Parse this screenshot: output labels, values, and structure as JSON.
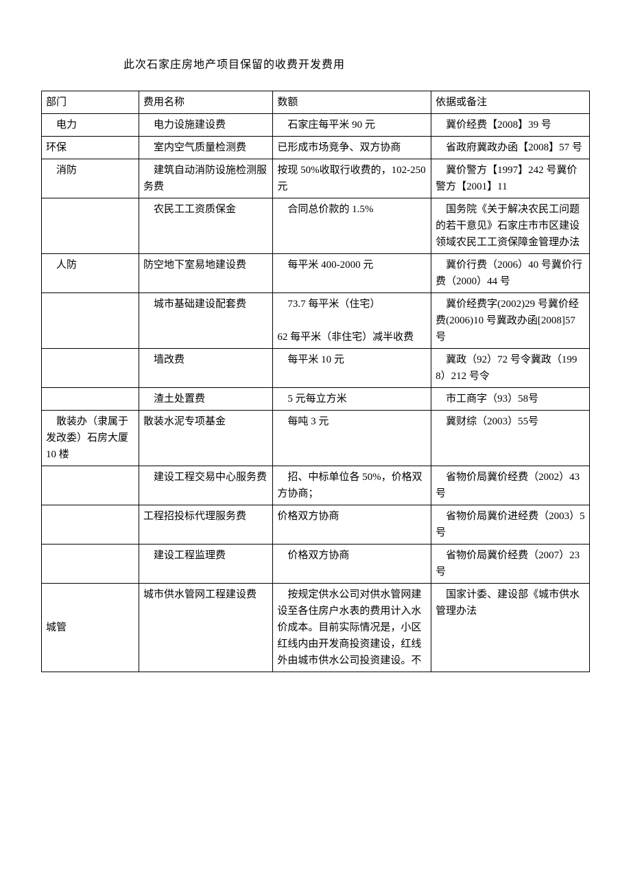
{
  "title": "此次石家庄房地产项目保留的收费开发费用",
  "headers": [
    "部门",
    "费用名称",
    "数额",
    "依据或备注"
  ],
  "rows": [
    {
      "dept": "电力",
      "fee": "电力设施建设费",
      "amount": "石家庄每平米 90 元",
      "basis": "冀价经费【2008】39 号",
      "dept_indent": true,
      "fee_indent": true,
      "amount_indent": true,
      "basis_indent": true
    },
    {
      "dept": "环保",
      "fee": "室内空气质量检测费",
      "amount": "已形成市场竞争、双方协商",
      "basis": "省政府冀政办函【2008】57 号",
      "fee_indent": true,
      "basis_indent": true
    },
    {
      "dept": "消防",
      "fee": "建筑自动消防设施检测服务费",
      "amount": "按现 50%收取行收费的，102-250 元",
      "basis": "冀价警方【1997】242 号冀价警方【2001】11",
      "dept_indent": true,
      "fee_indent": true,
      "basis_indent": true
    },
    {
      "dept": "",
      "fee": "农民工工资质保金",
      "amount": "合同总价款的 1.5%",
      "basis": "国务院《关于解决农民工问题的若干意见》石家庄市市区建设领域农民工工资保障金管理办法",
      "fee_indent": true,
      "amount_indent": true,
      "basis_indent": true
    },
    {
      "dept": "人防",
      "fee": "防空地下室易地建设费",
      "amount": "每平米 400-2000 元",
      "basis": "冀价行费（2006）40 号冀价行费（2000）44 号",
      "dept_indent": true,
      "amount_indent": true,
      "basis_indent": true
    },
    {
      "dept": "",
      "fee": "城市基础建设配套费",
      "amount": "73.7 每平米（住宅）\n\n62 每平米（非住宅）减半收费",
      "basis": "冀价经费字(2002)29 号冀价经费(2006)10 号冀政办函[2008]57 号",
      "fee_indent": true,
      "amount_indent": true,
      "basis_indent": true
    },
    {
      "dept": "",
      "fee": "墙改费",
      "amount": "每平米 10 元",
      "basis": "冀政（92）72 号令冀政（1998）212 号令",
      "fee_indent": true,
      "amount_indent": true,
      "basis_indent": true
    },
    {
      "dept": "",
      "fee": "渣土处置费",
      "amount": "5 元每立方米",
      "basis": "市工商字（93）58号",
      "fee_indent": true,
      "amount_indent": true,
      "basis_indent": true
    },
    {
      "dept": "散装办（隶属于发改委）石房大厦 10 楼",
      "fee": "散装水泥专项基金",
      "amount": "每吨 3 元",
      "basis": "冀财综（2003）55号",
      "dept_indent": true,
      "amount_indent": true,
      "basis_indent": true
    },
    {
      "dept": "",
      "fee": "建设工程交易中心服务费",
      "amount": "招、中标单位各 50%，价格双方协商；",
      "basis": "省物价局冀价经费（2002）43 号",
      "fee_indent": true,
      "amount_indent": true,
      "basis_indent": true
    },
    {
      "dept": "",
      "fee": "工程招投标代理服务费",
      "amount": "价格双方协商",
      "basis": "省物价局冀价进经费（2003）5 号",
      "basis_indent": true
    },
    {
      "dept": "",
      "fee": "建设工程监理费",
      "amount": "价格双方协商",
      "basis": "省物价局冀价经费（2007）23 号",
      "fee_indent": true,
      "amount_indent": true,
      "basis_indent": true
    },
    {
      "dept": "\n\n城管",
      "fee": "城市供水管网工程建设费",
      "amount": "按规定供水公司对供水管网建设至各住房户水表的费用计入水价成本。目前实际情况是，小区红线内由开发商投资建设，红线外由城市供水公司投资建设。不",
      "basis": "国家计委、建设部《城市供水管理办法",
      "dept_indent": true,
      "amount_indent": true,
      "basis_indent": true
    }
  ],
  "table": {
    "border_color": "#000000",
    "background_color": "#ffffff",
    "text_color": "#000000",
    "font_size": 15,
    "col_widths_pct": [
      16,
      22,
      26,
      26
    ]
  }
}
